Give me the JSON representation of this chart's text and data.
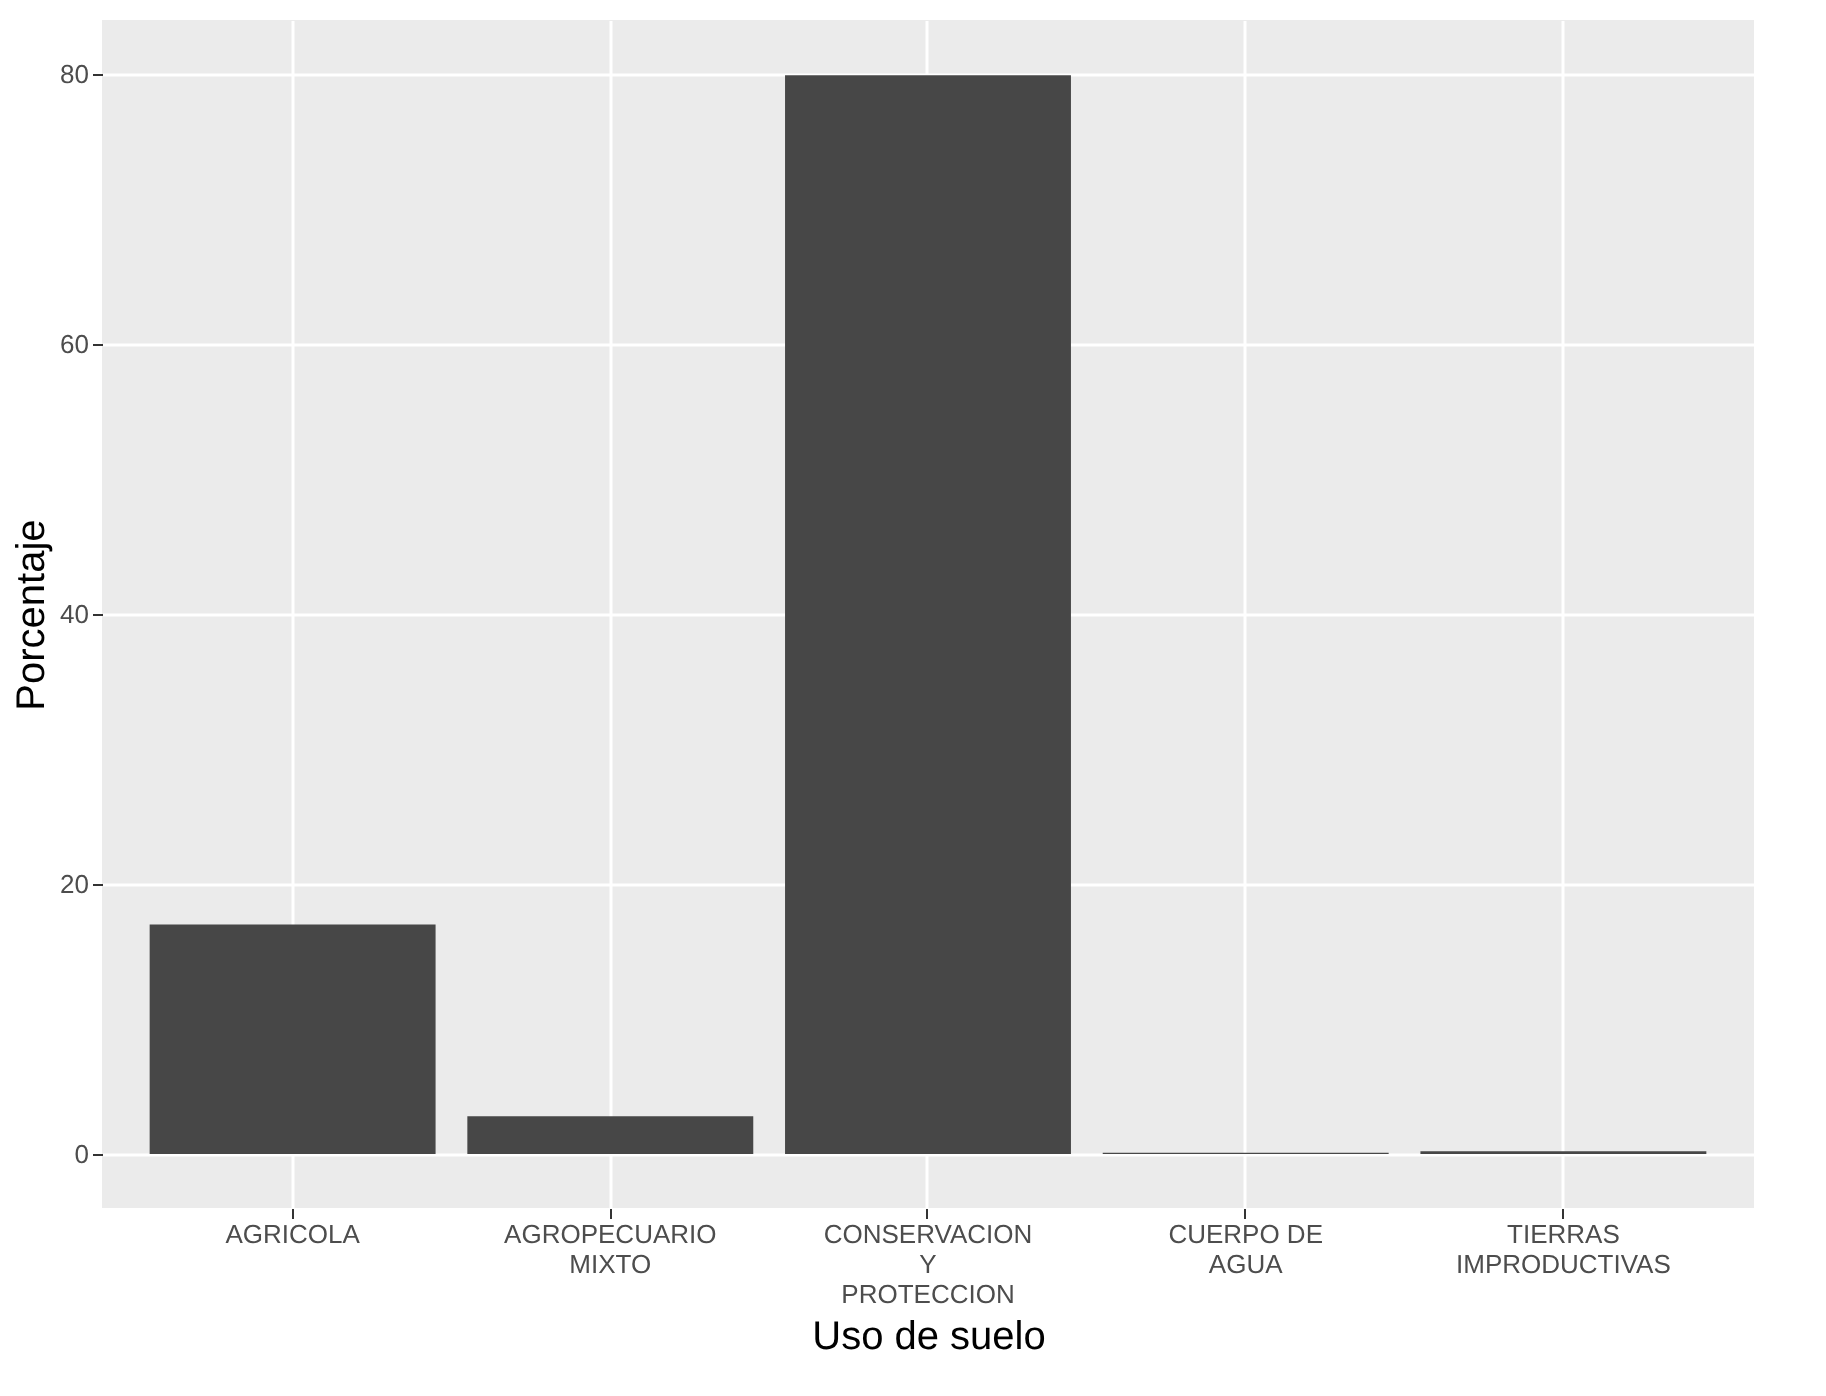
{
  "chart_data": {
    "type": "bar",
    "xlabel": "Uso de suelo",
    "ylabel": "Porcentaje",
    "categories": [
      "AGRICOLA",
      "AGROPECUARIO\nMIXTO",
      "CONSERVACION\nY\nPROTECCION",
      "CUERPO DE\nAGUA",
      "TIERRAS\nIMPRODUCTIVAS"
    ],
    "values": [
      17.0,
      2.8,
      79.9,
      0.1,
      0.2
    ],
    "color": "#474747",
    "ylim": [
      -4,
      84
    ],
    "yticks": [
      0,
      20,
      40,
      60,
      80
    ],
    "grid": true
  }
}
